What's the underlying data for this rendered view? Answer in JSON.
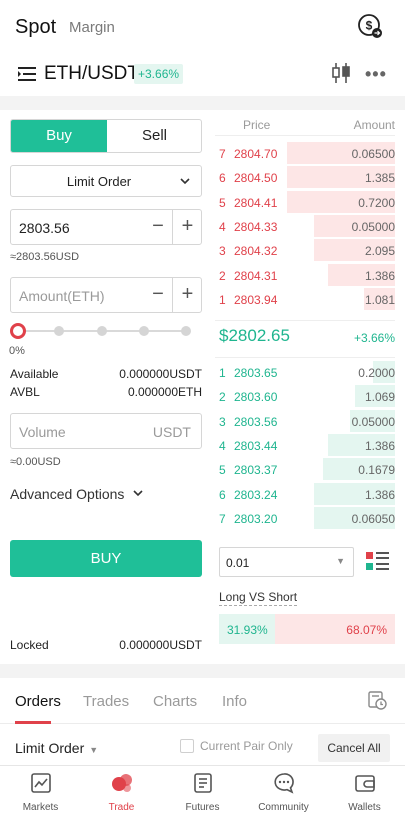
{
  "header": {
    "tab_spot": "Spot",
    "tab_margin": "Margin"
  },
  "pair": {
    "name": "ETH/USDT",
    "change": "+3.66%"
  },
  "form": {
    "tab_buy": "Buy",
    "tab_sell": "Sell",
    "order_type": "Limit Order",
    "price_value": "2803.56",
    "price_approx": "≈2803.56USD",
    "amount_placeholder": "Amount(ETH)",
    "slider_percent": "0%",
    "slider_fraction": 0,
    "available_label": "Available",
    "available_value": "0.000000USDT",
    "avbl_label": "AVBL",
    "avbl_value": "0.000000ETH",
    "volume_placeholder": "Volume",
    "volume_unit": "USDT",
    "volume_approx": "≈0.00USD",
    "advanced_options": "Advanced Options",
    "buy_button": "BUY",
    "locked_label": "Locked",
    "locked_value": "0.000000USDT"
  },
  "orderbook": {
    "header_price": "Price",
    "header_amount": "Amount",
    "asks": [
      {
        "idx": "7",
        "price": "2804.70",
        "amount": "0.06500",
        "depth": 0.6
      },
      {
        "idx": "6",
        "price": "2804.50",
        "amount": "1.385",
        "depth": 0.6
      },
      {
        "idx": "5",
        "price": "2804.41",
        "amount": "0.7200",
        "depth": 0.6
      },
      {
        "idx": "4",
        "price": "2804.33",
        "amount": "0.05000",
        "depth": 0.45
      },
      {
        "idx": "3",
        "price": "2804.32",
        "amount": "2.095",
        "depth": 0.45
      },
      {
        "idx": "2",
        "price": "2804.31",
        "amount": "1.386",
        "depth": 0.37
      },
      {
        "idx": "1",
        "price": "2803.94",
        "amount": "1.081",
        "depth": 0.17
      }
    ],
    "mid_price": "$2802.65",
    "mid_change": "+3.66%",
    "bids": [
      {
        "idx": "1",
        "price": "2803.65",
        "amount": "0.2000",
        "depth": 0.12
      },
      {
        "idx": "2",
        "price": "2803.60",
        "amount": "1.069",
        "depth": 0.22
      },
      {
        "idx": "3",
        "price": "2803.56",
        "amount": "0.05000",
        "depth": 0.25
      },
      {
        "idx": "4",
        "price": "2803.44",
        "amount": "1.386",
        "depth": 0.37
      },
      {
        "idx": "5",
        "price": "2803.37",
        "amount": "0.1679",
        "depth": 0.4
      },
      {
        "idx": "6",
        "price": "2803.24",
        "amount": "1.386",
        "depth": 0.45
      },
      {
        "idx": "7",
        "price": "2803.20",
        "amount": "0.06050",
        "depth": 0.45
      }
    ],
    "precision": "0.01",
    "long_vs_short_label": "Long VS Short",
    "long_pct": "31.93%",
    "short_pct": "68.07%",
    "long_fraction": 0.3193
  },
  "orders": {
    "tab_orders": "Orders",
    "tab_trades": "Trades",
    "tab_charts": "Charts",
    "tab_info": "Info",
    "filter_type": "Limit Order",
    "current_pair_only": "Current Pair Only",
    "cancel_all": "Cancel All"
  },
  "nav": {
    "markets": "Markets",
    "trade": "Trade",
    "futures": "Futures",
    "community": "Community",
    "wallets": "Wallets"
  },
  "colors": {
    "accent_green": "#1fbf98",
    "up_green": "#1fb58f",
    "down_red": "#e0414a"
  }
}
